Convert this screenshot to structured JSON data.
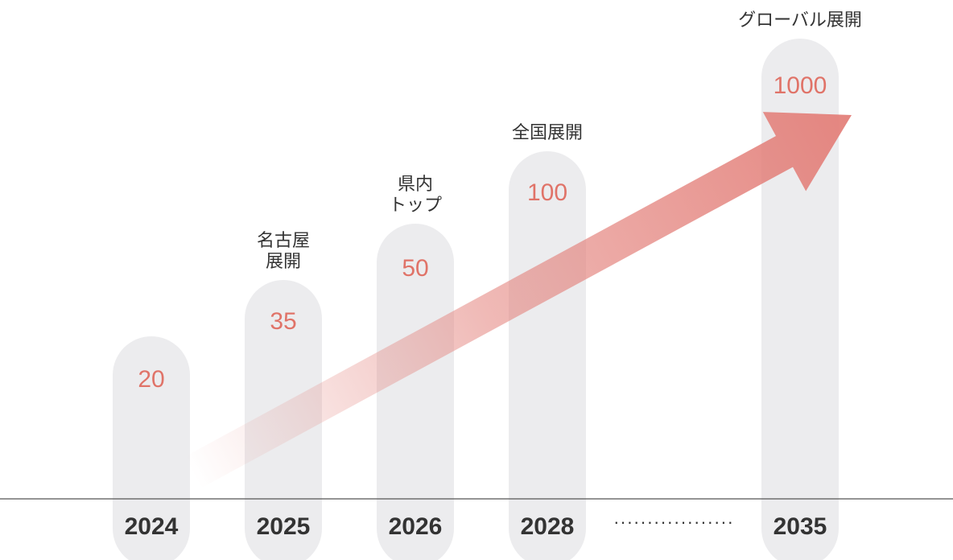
{
  "chart_data": {
    "type": "bar",
    "categories": [
      "2024",
      "2025",
      "2026",
      "2028",
      "2035"
    ],
    "values": [
      20,
      35,
      50,
      100,
      1000
    ],
    "value_labels": [
      "20",
      "35",
      "50",
      "100",
      "1000"
    ],
    "milestones": [
      [],
      [
        "名古屋",
        "展開"
      ],
      [
        "県内",
        "トップ"
      ],
      [
        "全国展開"
      ],
      [
        "グローバル展開"
      ]
    ],
    "gap_marker": "··················",
    "trend": "increasing",
    "colors": {
      "bar": "#ececee",
      "value_text": "#e07368",
      "arrow": "#e3807a",
      "axis": "#555555",
      "year_text": "#333333"
    },
    "grid": false
  }
}
